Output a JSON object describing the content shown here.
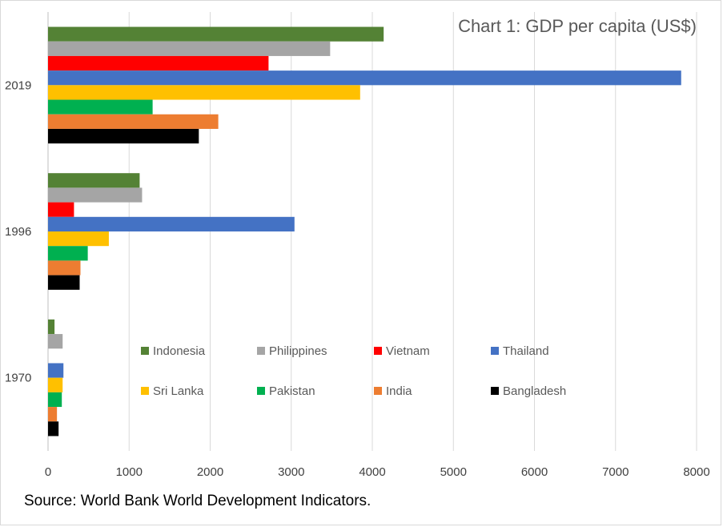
{
  "chart_data": {
    "type": "bar",
    "orientation": "horizontal",
    "title": "Chart 1: GDP per capita (US$)",
    "categories": [
      "2019",
      "1996",
      "1970"
    ],
    "xlim": [
      0,
      8000
    ],
    "xticks": [
      "0",
      "1000",
      "2000",
      "3000",
      "4000",
      "5000",
      "6000",
      "7000",
      "8000"
    ],
    "grid": "vertical",
    "legend_position": "inside-center",
    "series": [
      {
        "name": "Indonesia",
        "color": "#548235",
        "values": [
          4140,
          1130,
          80
        ]
      },
      {
        "name": "Philippines",
        "color": "#a5a5a5",
        "values": [
          3480,
          1160,
          180
        ]
      },
      {
        "name": "Vietnam",
        "color": "#ff0000",
        "values": [
          2720,
          320,
          null
        ]
      },
      {
        "name": "Thailand",
        "color": "#4472c4",
        "values": [
          7810,
          3040,
          190
        ]
      },
      {
        "name": "Sri Lanka",
        "color": "#ffc000",
        "values": [
          3850,
          750,
          180
        ]
      },
      {
        "name": "Pakistan",
        "color": "#00b050",
        "values": [
          1290,
          490,
          170
        ]
      },
      {
        "name": "India",
        "color": "#ed7d31",
        "values": [
          2100,
          400,
          110
        ]
      },
      {
        "name": "Bangladesh",
        "color": "#000000",
        "values": [
          1860,
          390,
          130
        ]
      }
    ]
  },
  "source_note": "Source: World Bank World Development Indicators."
}
